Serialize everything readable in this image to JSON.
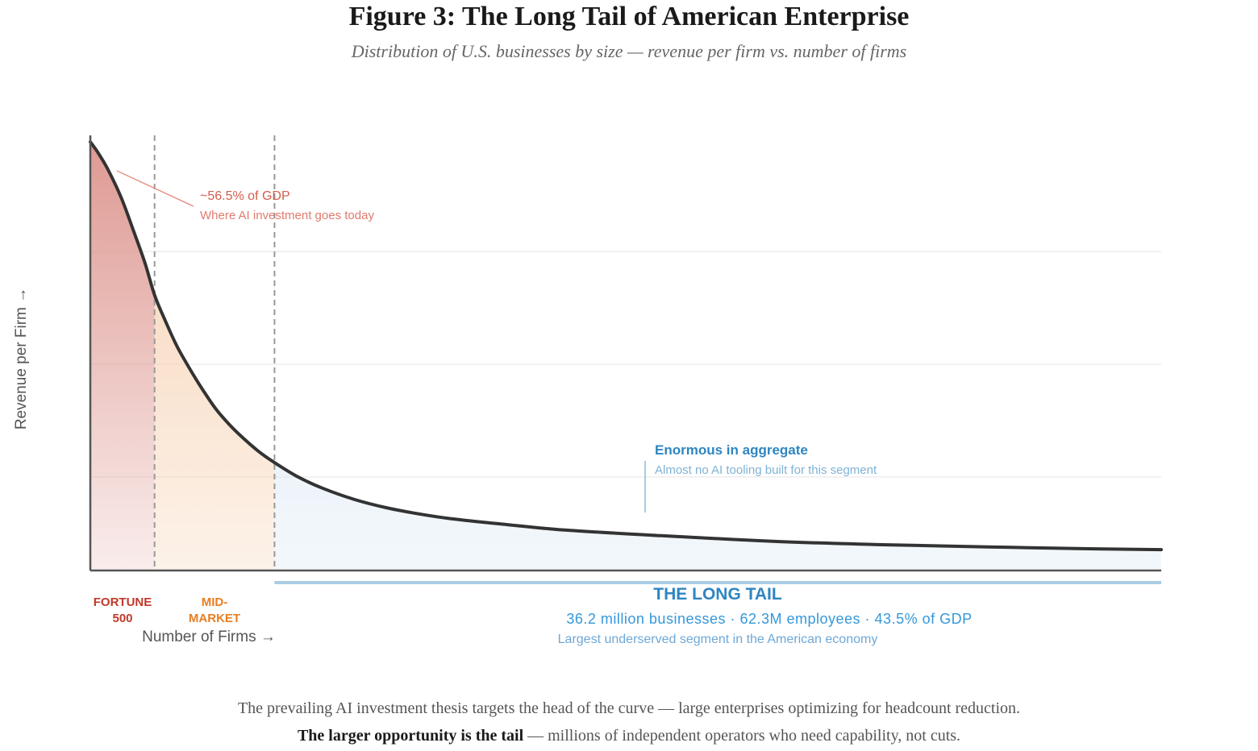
{
  "header": {
    "title": "Figure 3: The Long Tail of American Enterprise",
    "subtitle": "Distribution of U.S. businesses by size — revenue per firm vs. number of firms"
  },
  "chart_data": {
    "type": "area",
    "title": "Figure 3: The Long Tail of American Enterprise",
    "subtitle": "Distribution of U.S. businesses by size — revenue per firm vs. number of firms",
    "xlabel": "Number of Firms →",
    "ylabel": "Revenue per Firm →",
    "xlim": [
      0,
      100
    ],
    "ylim": [
      0,
      100
    ],
    "grid": true,
    "gridlines_y": [
      21.5,
      47.4,
      73.3
    ],
    "ticks_labeled": false,
    "units_note": "Relative scale (no numeric ticks shown)",
    "series": [
      {
        "name": "Revenue per firm curve",
        "x": [
          0,
          0.75,
          1.7,
          2.9,
          4.0,
          5.1,
          6.0,
          7.0,
          8.1,
          9.3,
          10.4,
          11.7,
          13.0,
          14.2,
          15.7,
          17.2,
          19.4,
          21.7,
          24.7,
          27.7,
          30.7,
          33.7,
          38.3,
          44.3,
          53.3,
          63.9,
          74.4,
          84.2,
          93.2,
          100
        ],
        "y": [
          98.5,
          95.9,
          91.9,
          85.6,
          78.3,
          70.7,
          63.3,
          57.4,
          51.5,
          46.3,
          41.9,
          37.2,
          33.5,
          30.6,
          27.4,
          24.8,
          21.5,
          18.9,
          16.3,
          14.4,
          13.0,
          11.9,
          10.7,
          9.3,
          8.0,
          6.7,
          5.9,
          5.4,
          5.0,
          4.8
        ]
      }
    ],
    "segments": [
      {
        "name": "Fortune 500",
        "label_line1": "FORTUNE",
        "label_line2": "500",
        "x_start": 0,
        "x_end": 6.0,
        "color": "#c0392b",
        "fill": "#d98880"
      },
      {
        "name": "Mid-Market",
        "label_line1": "MID-",
        "label_line2": "MARKET",
        "x_start": 6.0,
        "x_end": 17.2,
        "color": "#e67e22",
        "fill": "#f5cba7"
      },
      {
        "name": "The Long Tail",
        "label_line1": "THE LONG TAIL",
        "x_start": 17.2,
        "x_end": 100,
        "color": "#2e86c1",
        "fill": "#d6e6f2"
      }
    ],
    "annotations": {
      "head": {
        "headline": "~56.5% of GDP",
        "detail": "Where AI investment goes today",
        "color": "#d35d4a"
      },
      "tail": {
        "headline": "Enormous in aggregate",
        "detail": "Almost no AI tooling built for this segment",
        "color": "#2e86c1"
      },
      "long_tail_stats": "36.2 million businesses · 62.3M employees · 43.5% of GDP",
      "long_tail_note": "Largest underserved segment in the American economy"
    }
  },
  "caption": {
    "line1": "The prevailing AI investment thesis targets the head of the curve — large enterprises optimizing for headcount reduction.",
    "line2_bold": "The larger opportunity is the tail",
    "line2_rest": " — millions of independent operators who need capability, not cuts."
  },
  "colors": {
    "curve": "#333333",
    "axis": "#555555",
    "grid": "#eeeeee",
    "divider": "#999999",
    "head_accent": "#c0392b",
    "mid_accent": "#e67e22",
    "tail_accent": "#2e86c1",
    "tail_bar": "#a9cce3"
  }
}
